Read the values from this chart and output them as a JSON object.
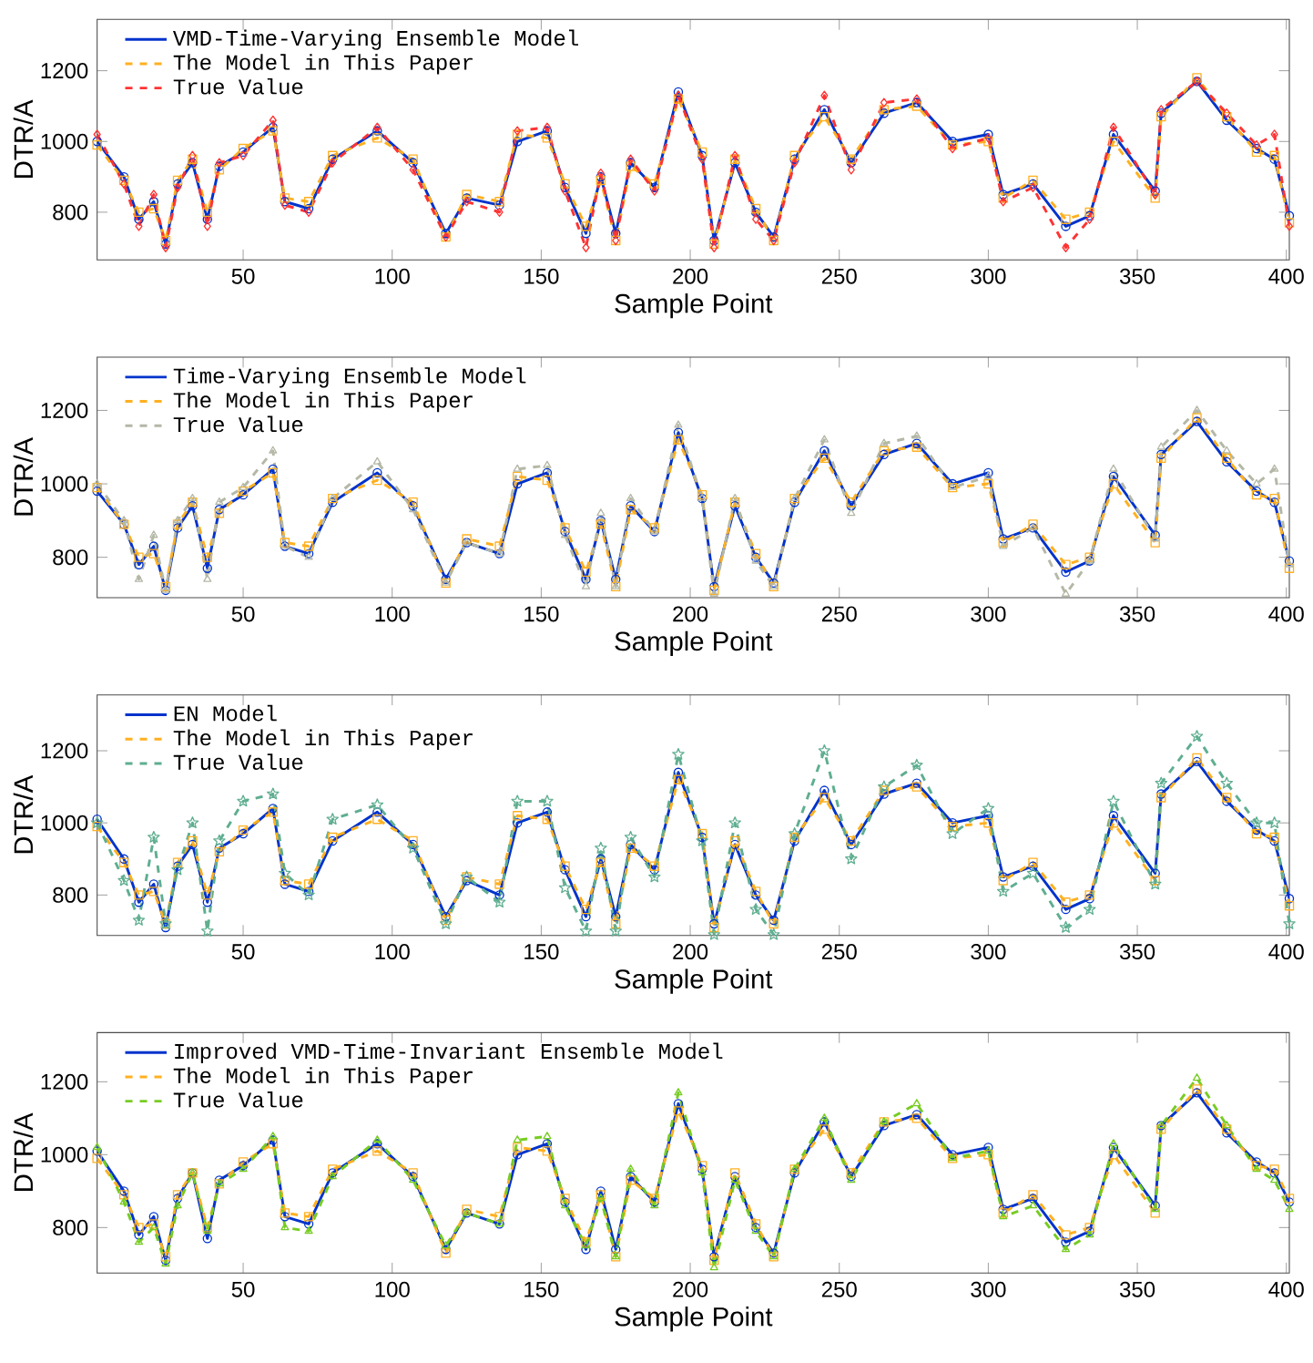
{
  "chart_data": [
    {
      "type": "line",
      "xlabel": "Sample Point",
      "ylabel": "DTR/A",
      "xlim": [
        1,
        401
      ],
      "ylim": [
        665,
        1345
      ],
      "xticks": [
        50,
        100,
        150,
        200,
        250,
        300,
        350,
        400
      ],
      "yticks": [
        800,
        1000,
        1200
      ],
      "legend": "top left",
      "x": [
        1,
        10,
        15,
        20,
        24,
        28,
        33,
        38,
        42,
        50,
        60,
        64,
        72,
        80,
        95,
        107,
        118,
        125,
        136,
        142,
        152,
        158,
        165,
        170,
        175,
        180,
        188,
        196,
        204,
        208,
        215,
        222,
        228,
        235,
        245,
        254,
        265,
        276,
        288,
        300,
        305,
        315,
        326,
        334,
        342,
        356,
        358,
        370,
        380,
        390,
        396,
        401
      ],
      "series": [
        {
          "name": "VMD-Time-Varying Ensemble Model",
          "color": "#0033cc",
          "marker": "circle",
          "line_style": "solid",
          "values": [
            1000,
            900,
            780,
            830,
            710,
            880,
            940,
            780,
            930,
            970,
            1040,
            830,
            810,
            950,
            1030,
            940,
            740,
            840,
            820,
            1000,
            1030,
            870,
            740,
            900,
            740,
            940,
            870,
            1140,
            960,
            720,
            940,
            800,
            730,
            950,
            1090,
            940,
            1080,
            1110,
            1000,
            1020,
            850,
            880,
            760,
            790,
            1020,
            860,
            1080,
            1170,
            1060,
            980,
            950,
            790
          ]
        },
        {
          "name": "The Model in This Paper",
          "color": "#ffb020",
          "marker": "square",
          "line_style": "dashed",
          "values": [
            990,
            890,
            800,
            810,
            720,
            890,
            950,
            800,
            920,
            980,
            1030,
            840,
            830,
            960,
            1010,
            950,
            730,
            850,
            830,
            1020,
            1010,
            880,
            760,
            890,
            720,
            930,
            880,
            1120,
            970,
            710,
            950,
            810,
            720,
            960,
            1070,
            950,
            1090,
            1100,
            990,
            1000,
            840,
            890,
            780,
            800,
            1000,
            840,
            1070,
            1180,
            1070,
            970,
            960,
            770
          ]
        },
        {
          "name": "True Value",
          "color": "#ff3333",
          "marker": "diamond",
          "line_style": "dashed",
          "values": [
            1020,
            880,
            760,
            850,
            700,
            870,
            960,
            760,
            940,
            960,
            1060,
            820,
            800,
            940,
            1040,
            920,
            730,
            830,
            800,
            1030,
            1040,
            860,
            700,
            910,
            720,
            950,
            860,
            1130,
            950,
            700,
            960,
            780,
            720,
            940,
            1130,
            920,
            1110,
            1120,
            980,
            1010,
            830,
            870,
            700,
            780,
            1040,
            850,
            1090,
            1170,
            1080,
            990,
            1020,
            760
          ]
        }
      ]
    },
    {
      "type": "line",
      "xlabel": "Sample Point",
      "ylabel": "DTR/A",
      "xlim": [
        1,
        401
      ],
      "ylim": [
        690,
        1345
      ],
      "xticks": [
        50,
        100,
        150,
        200,
        250,
        300,
        350,
        400
      ],
      "yticks": [
        800,
        1000,
        1200
      ],
      "legend": "top left",
      "x": [
        1,
        10,
        15,
        20,
        24,
        28,
        33,
        38,
        42,
        50,
        60,
        64,
        72,
        80,
        95,
        107,
        118,
        125,
        136,
        142,
        152,
        158,
        165,
        170,
        175,
        180,
        188,
        196,
        204,
        208,
        215,
        222,
        228,
        235,
        245,
        254,
        265,
        276,
        288,
        300,
        305,
        315,
        326,
        334,
        342,
        356,
        358,
        370,
        380,
        390,
        396,
        401
      ],
      "series": [
        {
          "name": "Time-Varying Ensemble Model",
          "color": "#0033cc",
          "marker": "circle",
          "line_style": "solid",
          "values": [
            980,
            890,
            780,
            830,
            710,
            880,
            940,
            770,
            930,
            970,
            1040,
            830,
            810,
            950,
            1030,
            940,
            740,
            840,
            810,
            1000,
            1030,
            870,
            740,
            900,
            740,
            940,
            870,
            1140,
            960,
            720,
            940,
            800,
            730,
            950,
            1090,
            940,
            1080,
            1110,
            1000,
            1030,
            850,
            880,
            760,
            790,
            1020,
            860,
            1080,
            1170,
            1060,
            980,
            950,
            790
          ]
        },
        {
          "name": "The Model in This Paper",
          "color": "#ffb020",
          "marker": "square",
          "line_style": "dashed",
          "values": [
            990,
            890,
            800,
            810,
            720,
            890,
            950,
            800,
            920,
            980,
            1030,
            840,
            830,
            960,
            1010,
            950,
            730,
            850,
            830,
            1020,
            1010,
            880,
            760,
            890,
            720,
            930,
            880,
            1120,
            970,
            710,
            950,
            810,
            720,
            960,
            1070,
            950,
            1090,
            1100,
            990,
            1000,
            840,
            890,
            780,
            800,
            1000,
            840,
            1070,
            1180,
            1070,
            970,
            960,
            770
          ]
        },
        {
          "name": "True Value",
          "color": "#b4b8a6",
          "marker": "triangle",
          "line_style": "dashed",
          "values": [
            1000,
            900,
            740,
            860,
            710,
            900,
            960,
            740,
            950,
            990,
            1090,
            830,
            800,
            960,
            1060,
            930,
            730,
            840,
            810,
            1040,
            1050,
            860,
            720,
            920,
            720,
            960,
            870,
            1160,
            960,
            700,
            960,
            790,
            720,
            960,
            1120,
            920,
            1110,
            1130,
            990,
            1020,
            830,
            880,
            700,
            790,
            1040,
            850,
            1100,
            1200,
            1090,
            1000,
            1040,
            780
          ]
        }
      ]
    },
    {
      "type": "line",
      "xlabel": "Sample Point",
      "ylabel": "DTR/A",
      "xlim": [
        1,
        401
      ],
      "ylim": [
        688,
        1355
      ],
      "xticks": [
        50,
        100,
        150,
        200,
        250,
        300,
        350,
        400
      ],
      "yticks": [
        800,
        1000,
        1200
      ],
      "legend": "top left",
      "x": [
        1,
        10,
        15,
        20,
        24,
        28,
        33,
        38,
        42,
        50,
        60,
        64,
        72,
        80,
        95,
        107,
        118,
        125,
        136,
        142,
        152,
        158,
        165,
        170,
        175,
        180,
        188,
        196,
        204,
        208,
        215,
        222,
        228,
        235,
        245,
        254,
        265,
        276,
        288,
        300,
        305,
        315,
        326,
        334,
        342,
        356,
        358,
        370,
        380,
        390,
        396,
        401
      ],
      "series": [
        {
          "name": "EN Model",
          "color": "#0033cc",
          "marker": "circle",
          "line_style": "solid",
          "values": [
            1010,
            900,
            780,
            830,
            710,
            880,
            940,
            780,
            930,
            970,
            1040,
            830,
            810,
            950,
            1030,
            940,
            740,
            840,
            800,
            1000,
            1030,
            870,
            740,
            900,
            740,
            940,
            870,
            1140,
            960,
            720,
            940,
            800,
            730,
            950,
            1090,
            940,
            1080,
            1110,
            1000,
            1020,
            850,
            880,
            760,
            790,
            1020,
            860,
            1080,
            1170,
            1060,
            980,
            950,
            790
          ]
        },
        {
          "name": "The Model in This Paper",
          "color": "#ffb020",
          "marker": "square",
          "line_style": "dashed",
          "values": [
            990,
            890,
            800,
            810,
            720,
            890,
            950,
            800,
            920,
            980,
            1030,
            840,
            830,
            960,
            1010,
            950,
            730,
            850,
            830,
            1020,
            1010,
            880,
            760,
            890,
            720,
            930,
            880,
            1120,
            970,
            710,
            950,
            810,
            720,
            960,
            1070,
            950,
            1090,
            1100,
            990,
            1000,
            840,
            890,
            780,
            800,
            1000,
            840,
            1070,
            1180,
            1070,
            970,
            960,
            770
          ]
        },
        {
          "name": "True Value",
          "color": "#5fae90",
          "marker": "star",
          "line_style": "dashed",
          "values": [
            1000,
            840,
            730,
            960,
            720,
            870,
            1000,
            700,
            950,
            1060,
            1080,
            860,
            800,
            1010,
            1050,
            930,
            720,
            850,
            780,
            1060,
            1060,
            820,
            700,
            930,
            700,
            960,
            850,
            1190,
            950,
            690,
            1000,
            760,
            690,
            970,
            1200,
            900,
            1100,
            1160,
            970,
            1040,
            810,
            860,
            710,
            760,
            1060,
            830,
            1110,
            1240,
            1110,
            1000,
            1000,
            720
          ]
        }
      ]
    },
    {
      "type": "line",
      "xlabel": "Sample Point",
      "ylabel": "DTR/A",
      "xlim": [
        1,
        401
      ],
      "ylim": [
        675,
        1335
      ],
      "xticks": [
        50,
        100,
        150,
        200,
        250,
        300,
        350,
        400
      ],
      "yticks": [
        800,
        1000,
        1200
      ],
      "legend": "top left",
      "x": [
        1,
        10,
        15,
        20,
        24,
        28,
        33,
        38,
        42,
        50,
        60,
        64,
        72,
        80,
        95,
        107,
        118,
        125,
        136,
        142,
        152,
        158,
        165,
        170,
        175,
        180,
        188,
        196,
        204,
        208,
        215,
        222,
        228,
        235,
        245,
        254,
        265,
        276,
        288,
        300,
        305,
        315,
        326,
        334,
        342,
        356,
        358,
        370,
        380,
        390,
        396,
        401
      ],
      "series": [
        {
          "name": "Improved VMD-Time-Invariant Ensemble Model",
          "color": "#0033cc",
          "marker": "circle",
          "line_style": "solid",
          "values": [
            1010,
            900,
            780,
            830,
            710,
            880,
            950,
            770,
            930,
            970,
            1040,
            830,
            810,
            950,
            1030,
            940,
            740,
            840,
            810,
            1000,
            1030,
            870,
            740,
            900,
            740,
            940,
            870,
            1140,
            960,
            720,
            940,
            800,
            730,
            950,
            1090,
            940,
            1080,
            1110,
            1000,
            1020,
            850,
            880,
            760,
            790,
            1020,
            860,
            1080,
            1170,
            1060,
            980,
            950,
            870
          ]
        },
        {
          "name": "The Model in This Paper",
          "color": "#ffb020",
          "marker": "square",
          "line_style": "dashed",
          "values": [
            990,
            890,
            800,
            810,
            720,
            890,
            950,
            800,
            920,
            980,
            1030,
            840,
            830,
            960,
            1010,
            950,
            730,
            850,
            830,
            1020,
            1010,
            880,
            760,
            890,
            720,
            930,
            880,
            1120,
            970,
            710,
            950,
            810,
            720,
            960,
            1070,
            950,
            1090,
            1100,
            990,
            1000,
            840,
            890,
            780,
            800,
            1000,
            840,
            1070,
            1180,
            1070,
            970,
            960,
            880
          ]
        },
        {
          "name": "True Value",
          "color": "#77cc22",
          "marker": "triangle",
          "line_style": "dashed",
          "values": [
            1020,
            870,
            760,
            800,
            700,
            860,
            950,
            790,
            920,
            960,
            1050,
            800,
            790,
            940,
            1040,
            930,
            750,
            840,
            810,
            1040,
            1050,
            860,
            750,
            880,
            720,
            960,
            860,
            1170,
            950,
            690,
            930,
            790,
            720,
            960,
            1100,
            930,
            1090,
            1140,
            990,
            1010,
            830,
            860,
            740,
            780,
            1030,
            850,
            1080,
            1210,
            1080,
            960,
            930,
            850
          ]
        }
      ]
    }
  ]
}
